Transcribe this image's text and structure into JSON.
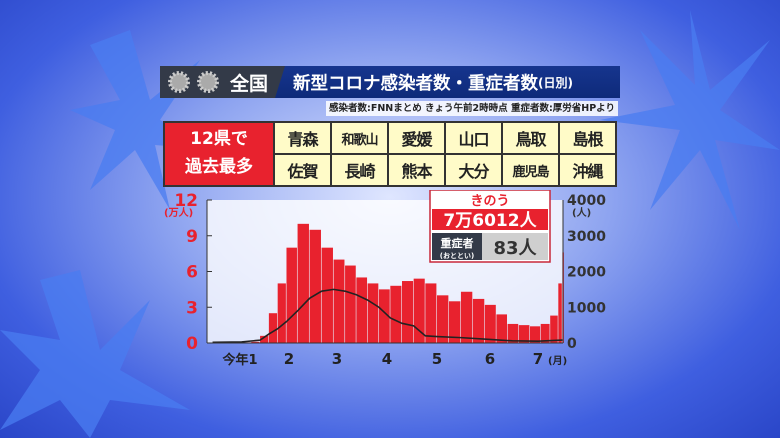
{
  "header": {
    "region": "全国",
    "title": "新型コロナ感染者数・重症者数",
    "title_suffix": "(日別)",
    "source": "感染者数:FNNまとめ きょう午前2時時点 重症者数:厚労省HPより"
  },
  "record_table": {
    "label_line1": "12県で",
    "label_line2": "過去最多",
    "prefectures": [
      "青森",
      "和歌山",
      "愛媛",
      "山口",
      "鳥取",
      "島根",
      "佐賀",
      "長崎",
      "熊本",
      "大分",
      "鹿児島",
      "沖縄"
    ]
  },
  "callout": {
    "label": "きのう",
    "cases": "7万6012人",
    "severe_label": "重症者",
    "severe_sub": "(おととい)",
    "severe_value": "83人"
  },
  "colors": {
    "cases": "#e8222e",
    "severe": "#222222",
    "accent_blue": "#16358e"
  },
  "chart_data": {
    "type": "bar+line",
    "left_axis": {
      "unit": "(万人)",
      "ticks": [
        "0",
        "3",
        "6",
        "9",
        "12"
      ],
      "range": [
        0,
        12
      ]
    },
    "right_axis": {
      "unit": "(人)",
      "ticks": [
        "0",
        "1000",
        "2000",
        "3000",
        "4000"
      ],
      "range": [
        0,
        4000
      ]
    },
    "x_ticks": [
      "今年1",
      "2",
      "3",
      "4",
      "5",
      "6",
      "7"
    ],
    "x_unit": "(月)",
    "series": [
      {
        "type": "bar",
        "points": [
          [
            "12-05",
            0.03
          ],
          [
            "12-12",
            0.03
          ],
          [
            "12-19",
            0.05
          ],
          [
            "12-26",
            0.05
          ],
          [
            "01-02",
            0.1
          ],
          [
            "01-09",
            0.6
          ],
          [
            "01-16",
            2.5
          ],
          [
            "01-23",
            5
          ],
          [
            "01-30",
            8
          ],
          [
            "02-06",
            10
          ],
          [
            "02-13",
            9.5
          ],
          [
            "02-20",
            8
          ],
          [
            "02-27",
            7
          ],
          [
            "03-06",
            6.5
          ],
          [
            "03-13",
            5.5
          ],
          [
            "03-20",
            5
          ],
          [
            "03-27",
            4.5
          ],
          [
            "04-03",
            4.8
          ],
          [
            "04-10",
            5.2
          ],
          [
            "04-17",
            5.4
          ],
          [
            "04-24",
            5
          ],
          [
            "05-01",
            4
          ],
          [
            "05-08",
            3.5
          ],
          [
            "05-15",
            4.3
          ],
          [
            "05-22",
            3.7
          ],
          [
            "05-29",
            3.2
          ],
          [
            "06-05",
            2.4
          ],
          [
            "06-12",
            1.6
          ],
          [
            "06-19",
            1.5
          ],
          [
            "06-26",
            1.4
          ],
          [
            "07-03",
            1.6
          ],
          [
            "07-10",
            2.3
          ],
          [
            "07-16",
            5
          ],
          [
            "07-19",
            7.6
          ]
        ]
      },
      {
        "type": "line",
        "points": [
          [
            "12-05",
            20
          ],
          [
            "12-26",
            30
          ],
          [
            "01-09",
            80
          ],
          [
            "01-16",
            250
          ],
          [
            "01-23",
            400
          ],
          [
            "01-30",
            600
          ],
          [
            "02-06",
            900
          ],
          [
            "02-13",
            1250
          ],
          [
            "02-20",
            1450
          ],
          [
            "02-27",
            1500
          ],
          [
            "03-06",
            1450
          ],
          [
            "03-13",
            1350
          ],
          [
            "03-20",
            1200
          ],
          [
            "03-27",
            1000
          ],
          [
            "04-03",
            700
          ],
          [
            "04-10",
            550
          ],
          [
            "04-17",
            480
          ],
          [
            "04-24",
            200
          ],
          [
            "05-01",
            180
          ],
          [
            "05-15",
            150
          ],
          [
            "06-01",
            100
          ],
          [
            "06-15",
            60
          ],
          [
            "07-01",
            50
          ],
          [
            "07-19",
            83
          ]
        ]
      }
    ]
  }
}
